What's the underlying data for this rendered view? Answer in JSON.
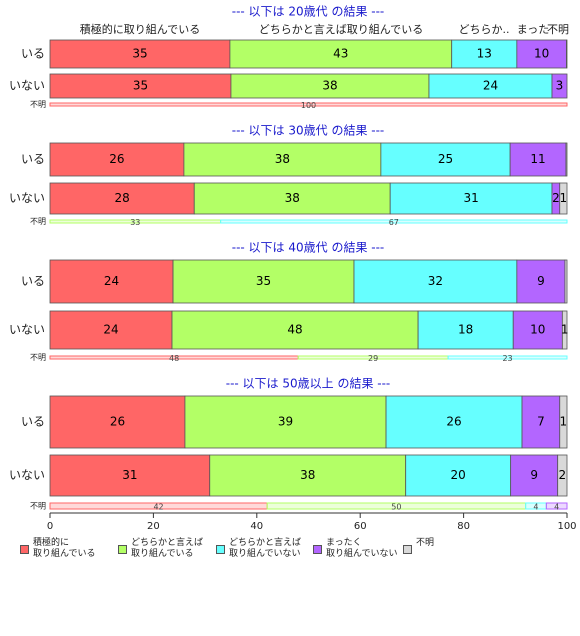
{
  "chart_data": [
    {
      "type": "bar",
      "orientation": "horizontal",
      "stacked": true,
      "title": "--- 以下は 20歳代 の結果 ---",
      "column_labels": [
        "積極的に取り組んでいる",
        "どちらかと言えば取り組んでいる",
        "どちらか..",
        "まった",
        "不明"
      ],
      "categories": [
        "いる",
        "いない",
        "不明"
      ],
      "xlim": [
        0,
        100
      ],
      "series": [
        {
          "color": "#ff6666",
          "values": [
            34.8,
            35.0,
            100
          ],
          "value_labels": [
            "35",
            "35",
            "100"
          ]
        },
        {
          "color": "#b3ff66",
          "values": [
            42.9,
            38.3,
            0
          ],
          "value_labels": [
            "43",
            "38",
            null
          ]
        },
        {
          "color": "#66ffff",
          "values": [
            12.6,
            23.8,
            0
          ],
          "value_labels": [
            "13",
            "24",
            null
          ]
        },
        {
          "color": "#b366ff",
          "values": [
            9.6,
            2.9,
            0
          ],
          "value_labels": [
            "10",
            "3",
            null
          ]
        },
        {
          "color": "#d9d9d9",
          "values": [
            0.1,
            0,
            0
          ],
          "value_labels": [
            null,
            null,
            null
          ]
        }
      ]
    },
    {
      "type": "bar",
      "orientation": "horizontal",
      "stacked": true,
      "title": "--- 以下は 30歳代 の結果 ---",
      "categories": [
        "いる",
        "いない",
        "不明"
      ],
      "xlim": [
        0,
        100
      ],
      "series": [
        {
          "color": "#ff6666",
          "values": [
            25.9,
            27.9,
            0
          ],
          "value_labels": [
            "26",
            "28",
            null
          ]
        },
        {
          "color": "#b3ff66",
          "values": [
            38.1,
            37.9,
            33
          ],
          "value_labels": [
            "38",
            "38",
            "33"
          ]
        },
        {
          "color": "#66ffff",
          "values": [
            25.0,
            31.3,
            67
          ],
          "value_labels": [
            "25",
            "31",
            "67"
          ]
        },
        {
          "color": "#b366ff",
          "values": [
            10.8,
            1.5,
            0
          ],
          "value_labels": [
            "11",
            "2",
            null
          ]
        },
        {
          "color": "#d9d9d9",
          "values": [
            0.2,
            1.4,
            0
          ],
          "value_labels": [
            null,
            "1",
            null
          ]
        }
      ]
    },
    {
      "type": "bar",
      "orientation": "horizontal",
      "stacked": true,
      "title": "--- 以下は 40歳代 の結果 ---",
      "categories": [
        "いる",
        "いない",
        "不明"
      ],
      "xlim": [
        0,
        100
      ],
      "series": [
        {
          "color": "#ff6666",
          "values": [
            23.8,
            23.6,
            48
          ],
          "value_labels": [
            "24",
            "24",
            "48"
          ]
        },
        {
          "color": "#b3ff66",
          "values": [
            35.0,
            47.6,
            29
          ],
          "value_labels": [
            "35",
            "48",
            "29"
          ]
        },
        {
          "color": "#66ffff",
          "values": [
            31.5,
            18.4,
            23
          ],
          "value_labels": [
            "32",
            "18",
            "23"
          ]
        },
        {
          "color": "#b366ff",
          "values": [
            9.3,
            9.5,
            0
          ],
          "value_labels": [
            "9",
            "10",
            null
          ]
        },
        {
          "color": "#d9d9d9",
          "values": [
            0.4,
            0.9,
            0
          ],
          "value_labels": [
            null,
            "1",
            null
          ]
        }
      ]
    },
    {
      "type": "bar",
      "orientation": "horizontal",
      "stacked": true,
      "title": "--- 以下は 50歳以上 の結果 ---",
      "categories": [
        "いる",
        "いない",
        "不明"
      ],
      "xlim": [
        0,
        100
      ],
      "xticks": [
        0,
        20,
        40,
        60,
        80,
        100
      ],
      "series": [
        {
          "name": "積極的に\n取り組んでいる",
          "color": "#ff6666",
          "values": [
            26.1,
            30.9,
            42
          ],
          "value_labels": [
            "26",
            "31",
            "42"
          ]
        },
        {
          "name": "どちらかと言えば\n取り組んでいる",
          "color": "#b3ff66",
          "values": [
            38.9,
            37.9,
            50
          ],
          "value_labels": [
            "39",
            "38",
            "50"
          ]
        },
        {
          "name": "どちらかと言えば\n取り組んでいない",
          "color": "#66ffff",
          "values": [
            26.3,
            20.3,
            4
          ],
          "value_labels": [
            "26",
            "20",
            "4"
          ]
        },
        {
          "name": "まったく\n取り組んでいない",
          "color": "#b366ff",
          "values": [
            7.3,
            9.1,
            4
          ],
          "value_labels": [
            "7",
            "9",
            "4"
          ]
        },
        {
          "name": "不明",
          "color": "#d9d9d9",
          "values": [
            1.4,
            1.8,
            0
          ],
          "value_labels": [
            "1",
            "2",
            null
          ]
        }
      ]
    }
  ]
}
